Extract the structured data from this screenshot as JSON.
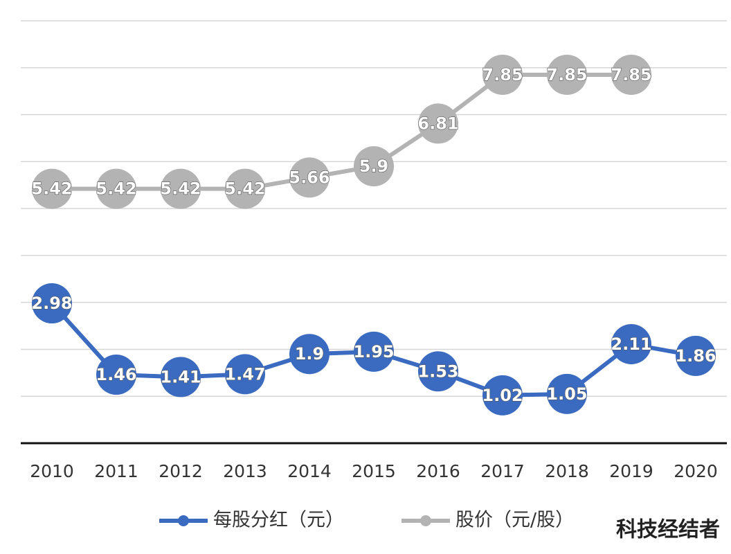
{
  "chart_data": {
    "type": "line",
    "categories": [
      "2010",
      "2011",
      "2012",
      "2013",
      "2014",
      "2015",
      "2016",
      "2017",
      "2018",
      "2019",
      "2020"
    ],
    "series": [
      {
        "name": "每股分红（元）",
        "color": "#3a6bc1",
        "values": [
          2.98,
          1.46,
          1.41,
          1.47,
          1.9,
          1.95,
          1.53,
          1.02,
          1.05,
          2.11,
          1.86
        ]
      },
      {
        "name": "股价（元/股）",
        "color": "#b3b3b3",
        "values": [
          5.42,
          5.42,
          5.42,
          5.42,
          5.66,
          5.9,
          6.81,
          7.85,
          7.85,
          7.85,
          null
        ]
      }
    ],
    "ylim": [
      0,
      9
    ],
    "yticks": [
      1,
      2,
      3,
      4,
      5,
      6,
      7,
      8,
      9
    ],
    "grid": true,
    "watermark": "科技经结者"
  }
}
